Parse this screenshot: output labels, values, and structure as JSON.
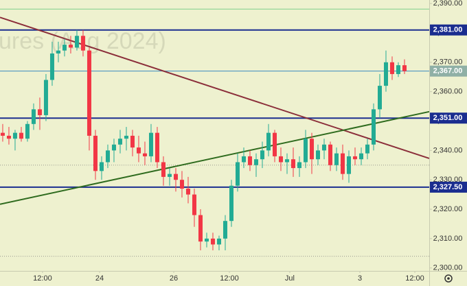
{
  "chart_data": {
    "type": "candlestick",
    "watermark": "ures (Aug 2024)",
    "open": [
      2346,
      2345,
      2344,
      2346,
      2344,
      2349,
      2354,
      2352,
      2364,
      2373,
      2374,
      2376,
      2375,
      2379,
      2374,
      2345,
      2333,
      2336,
      2340,
      2342,
      2344,
      2345,
      2341,
      2339,
      2338,
      2346,
      2336,
      2331,
      2332,
      2330,
      2327,
      2325,
      2318,
      2309,
      2310,
      2308,
      2310,
      2316,
      2328,
      2336,
      2338,
      2335,
      2337,
      2340,
      2346,
      2338,
      2336,
      2337,
      2334,
      2336,
      2344,
      2337,
      2340,
      2342,
      2335,
      2339,
      2332,
      2338,
      2337,
      2339,
      2342,
      2354,
      2362,
      2370,
      2366,
      2369
    ],
    "high": [
      2349,
      2348,
      2347,
      2348,
      2350,
      2356,
      2358,
      2366,
      2377,
      2377,
      2378,
      2379,
      2381,
      2381,
      2375,
      2347,
      2338,
      2342,
      2344,
      2347,
      2348,
      2347,
      2345,
      2343,
      2349,
      2348,
      2338,
      2334,
      2334,
      2333,
      2331,
      2327,
      2320,
      2312,
      2312,
      2311,
      2318,
      2330,
      2339,
      2341,
      2340,
      2339,
      2343,
      2349,
      2347,
      2341,
      2339,
      2341,
      2338,
      2347,
      2346,
      2342,
      2344,
      2343,
      2341,
      2342,
      2340,
      2341,
      2341,
      2344,
      2356,
      2366,
      2374,
      2372,
      2370,
      2371
    ],
    "low": [
      2343,
      2342,
      2340,
      2343,
      2343,
      2347,
      2347,
      2350,
      2362,
      2370,
      2372,
      2373,
      2374,
      2372,
      2340,
      2330,
      2330,
      2334,
      2336,
      2339,
      2340,
      2338,
      2336,
      2335,
      2336,
      2334,
      2328,
      2328,
      2326,
      2324,
      2322,
      2314,
      2306,
      2307,
      2306,
      2306,
      2306,
      2314,
      2326,
      2334,
      2333,
      2331,
      2334,
      2338,
      2336,
      2333,
      2332,
      2331,
      2331,
      2334,
      2332,
      2335,
      2337,
      2333,
      2333,
      2330,
      2329,
      2335,
      2335,
      2337,
      2340,
      2351,
      2360,
      2364,
      2365,
      2366
    ],
    "close": [
      2345,
      2344,
      2346,
      2344,
      2349,
      2354,
      2352,
      2364,
      2373,
      2374,
      2376,
      2375,
      2379,
      2374,
      2345,
      2333,
      2336,
      2340,
      2342,
      2344,
      2345,
      2341,
      2339,
      2338,
      2346,
      2336,
      2331,
      2332,
      2330,
      2327,
      2325,
      2318,
      2309,
      2310,
      2308,
      2310,
      2316,
      2328,
      2336,
      2338,
      2335,
      2337,
      2340,
      2346,
      2338,
      2336,
      2337,
      2334,
      2336,
      2344,
      2337,
      2340,
      2342,
      2335,
      2339,
      2332,
      2338,
      2337,
      2339,
      2342,
      2354,
      2362,
      2370,
      2366,
      2369,
      2367
    ],
    "up_color": "#22ab94",
    "down_color": "#f23645",
    "xlim": [
      -0.44,
      69
    ],
    "xticks": [
      {
        "value": 6.44,
        "label": "12:00"
      },
      {
        "value": 15.67,
        "label": "24"
      },
      {
        "value": 27.67,
        "label": "26"
      },
      {
        "value": 36.67,
        "label": "12:00"
      },
      {
        "value": 46.44,
        "label": "Jul"
      },
      {
        "value": 57.78,
        "label": "3"
      },
      {
        "value": 66.67,
        "label": "12:00"
      }
    ],
    "ylim": [
      2299,
      2391.2
    ],
    "yticks": [
      {
        "value": 2300,
        "label": "2,300.00"
      },
      {
        "value": 2310,
        "label": "2,310.00"
      },
      {
        "value": 2320,
        "label": "2,320.00"
      },
      {
        "value": 2330,
        "label": "2,330.00"
      },
      {
        "value": 2340,
        "label": "2,340.00"
      },
      {
        "value": 2350,
        "label": "2,350.00"
      },
      {
        "value": 2360,
        "label": "2,360.00"
      },
      {
        "value": 2370,
        "label": "2,370.00"
      },
      {
        "value": 2380,
        "label": "2,380.00"
      },
      {
        "value": 2390,
        "label": "2,390.00"
      }
    ],
    "levels": [
      {
        "value": 2381,
        "label": "2,381.00",
        "color": "#1a2d8f"
      },
      {
        "value": 2367,
        "label": "2,367.00",
        "color": "#8fb0a6"
      },
      {
        "value": 2351,
        "label": "2,351.00",
        "color": "#1a2d8f"
      },
      {
        "value": 2327.5,
        "label": "2,327.50",
        "color": "#1a2d8f"
      }
    ],
    "hlines": [
      {
        "value": 2388.1,
        "color": "#7fd08a",
        "dash": false
      },
      {
        "value": 2335,
        "color": "#9a9a90",
        "dash": true
      },
      {
        "value": 2304,
        "color": "#9a9a90",
        "dash": true
      }
    ],
    "trendlines": [
      {
        "x": [
          -0.44,
          69
        ],
        "y": [
          2385.3,
          2337.3
        ],
        "color": "#8b2e3a"
      },
      {
        "x": [
          -0.44,
          69
        ],
        "y": [
          2321.7,
          2353.2
        ],
        "color": "#2e6b1e"
      }
    ]
  }
}
